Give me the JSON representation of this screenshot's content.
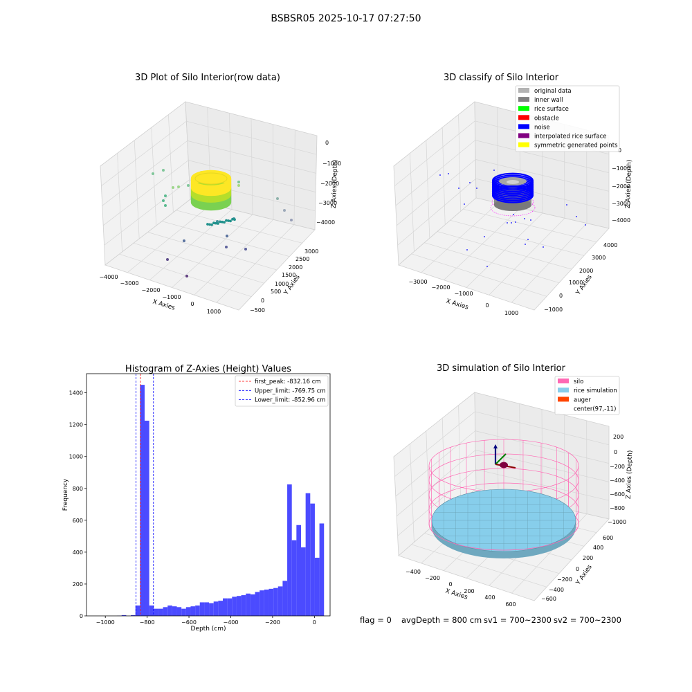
{
  "figure": {
    "suptitle": "BSBSR05 2025-10-17 07:27:50",
    "footer": {
      "flag": "flag = 0",
      "avg_depth": "avgDepth = 800 cm",
      "sv1": "sv1 = 700~2300",
      "sv2": "sv2 = 700~2300"
    }
  },
  "colors": {
    "histogram_bar": "#4b4bff",
    "first_peak_line": "#ff0000",
    "limit_lines": "#0000ff",
    "silo": "#ff69b4",
    "rice_simulation": "#87ceeb",
    "auger": "#ff4500"
  },
  "chart_data": [
    {
      "id": "raw",
      "type": "scatter",
      "projection": "3d",
      "title": "3D Plot of Silo Interior(row data)",
      "xlabel": "X Axies",
      "ylabel": "Y Axies",
      "zlabel": "Z Axies (Depth)",
      "xticks": [
        "−4000",
        "−3000",
        "−2000",
        "−1000",
        "0",
        "1000"
      ],
      "yticks": [
        "−500",
        "0",
        "500",
        "1000",
        "1500",
        "2000",
        "2500",
        "3000"
      ],
      "zticks": [
        "0",
        "−1000",
        "−2000",
        "−3000",
        "−4000"
      ],
      "color_by": "depth (viridis)"
    },
    {
      "id": "classify",
      "type": "scatter",
      "projection": "3d",
      "title": "3D classify of Silo Interior",
      "xlabel": "X Axies",
      "ylabel": "Y Axies",
      "zlabel": "Z Axies (Depth)",
      "xticks": [
        "−3000",
        "−2000",
        "−1000",
        "0",
        "1000"
      ],
      "yticks": [
        "−1000",
        "0",
        "1000",
        "2000",
        "3000",
        "4000"
      ],
      "zticks": [
        "0",
        "−1000",
        "−2000",
        "−3000",
        "−4000"
      ],
      "legend_position": "top-right",
      "legend": [
        {
          "label": "original data",
          "color": "#b3b3b3"
        },
        {
          "label": "inner wall",
          "color": "#808080"
        },
        {
          "label": "rice surface",
          "color": "#00ff00"
        },
        {
          "label": "obstacle",
          "color": "#ff0000"
        },
        {
          "label": "noise",
          "color": "#0000ff"
        },
        {
          "label": "interpolated rice surface",
          "color": "#800080"
        },
        {
          "label": "symmetric generated points",
          "color": "#ffff00"
        }
      ]
    },
    {
      "id": "histogram",
      "type": "bar",
      "title": "Histogram of Z-Axies (Height) Values",
      "xlabel": "Depth (cm)",
      "ylabel": "Frequency",
      "xlim": [
        -1090,
        75
      ],
      "ylim": [
        0,
        1520
      ],
      "xticks": [
        -1000,
        -800,
        -600,
        -400,
        -200,
        0
      ],
      "xtick_labels": [
        "−1000",
        "−800",
        "−600",
        "−400",
        "−200",
        "0"
      ],
      "yticks": [
        0,
        200,
        400,
        600,
        800,
        1000,
        1200,
        1400
      ],
      "yticks_labels": [
        "0",
        "200",
        "400",
        "600",
        "800",
        "1000",
        "1200",
        "1400"
      ],
      "bin_width": 22,
      "bin_start": -944,
      "values": [
        1,
        5,
        0,
        5,
        65,
        1450,
        1225,
        65,
        45,
        45,
        55,
        65,
        60,
        55,
        45,
        55,
        60,
        65,
        85,
        85,
        80,
        90,
        95,
        110,
        110,
        120,
        125,
        130,
        140,
        135,
        150,
        160,
        165,
        170,
        175,
        185,
        220,
        825,
        475,
        570,
        430,
        770,
        705,
        365,
        580
      ],
      "lines": [
        {
          "label": "first_peak: -832.16 cm",
          "x": -832.16,
          "color": "#ff0000"
        },
        {
          "label": "Upper_limit: -769.75 cm",
          "x": -769.75,
          "color": "#0000ff"
        },
        {
          "label": "Lower_limit: -852.96 cm",
          "x": -852.96,
          "color": "#0000ff"
        }
      ],
      "legend_position": "top-right"
    },
    {
      "id": "simulation",
      "type": "surface",
      "projection": "3d",
      "title": "3D simulation of Silo Interior",
      "xlabel": "X Axies",
      "ylabel": "Y Axies",
      "zlabel": "Z Axies (Depth)",
      "xticks": [
        "−400",
        "−200",
        "0",
        "200",
        "400",
        "600"
      ],
      "yticks": [
        "−600",
        "−400",
        "−200",
        "0",
        "200",
        "400",
        "600"
      ],
      "zticks": [
        "200",
        "0",
        "−200",
        "−400",
        "−600",
        "−800",
        "−1000"
      ],
      "legend_position": "top-right",
      "legend": [
        {
          "label": "silo",
          "color": "#ff69b4"
        },
        {
          "label": "rice simulation",
          "color": "#87ceeb"
        },
        {
          "label": "auger",
          "color": "#ff4500"
        },
        {
          "label": "center(97,-11)",
          "color": ""
        }
      ]
    }
  ]
}
